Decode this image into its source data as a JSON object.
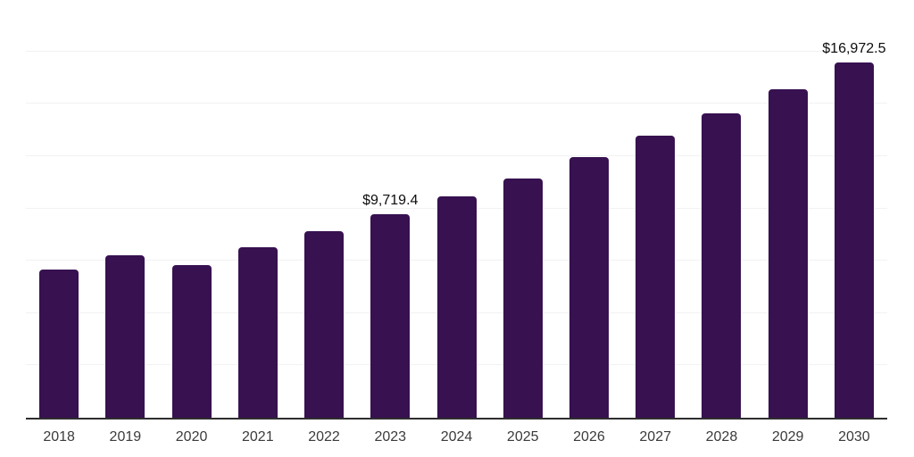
{
  "chart_data": {
    "type": "bar",
    "title": "",
    "xlabel": "",
    "ylabel": "",
    "categories": [
      "2018",
      "2019",
      "2020",
      "2021",
      "2022",
      "2023",
      "2024",
      "2025",
      "2026",
      "2027",
      "2028",
      "2029",
      "2030"
    ],
    "values": [
      7070,
      7750,
      7280,
      8130,
      8910,
      9719.4,
      10560,
      11420,
      12440,
      13480,
      14540,
      15710,
      16972.5
    ],
    "value_labels": [
      {
        "index": 5,
        "text": "$9,719.4"
      },
      {
        "index": 12,
        "text": "$16,972.5"
      }
    ],
    "ylim": [
      0,
      20000
    ],
    "grid_step": 2500,
    "grid": "horizontal-only",
    "legend_position": "none",
    "bar_color": "#371150",
    "axis_line_color": "#2e2e2e",
    "gridline_color": "#f2f2f2",
    "tick_label_color": "#3b3b3b",
    "value_label_color": "#0d0d0d",
    "background_color": "#ffffff"
  }
}
